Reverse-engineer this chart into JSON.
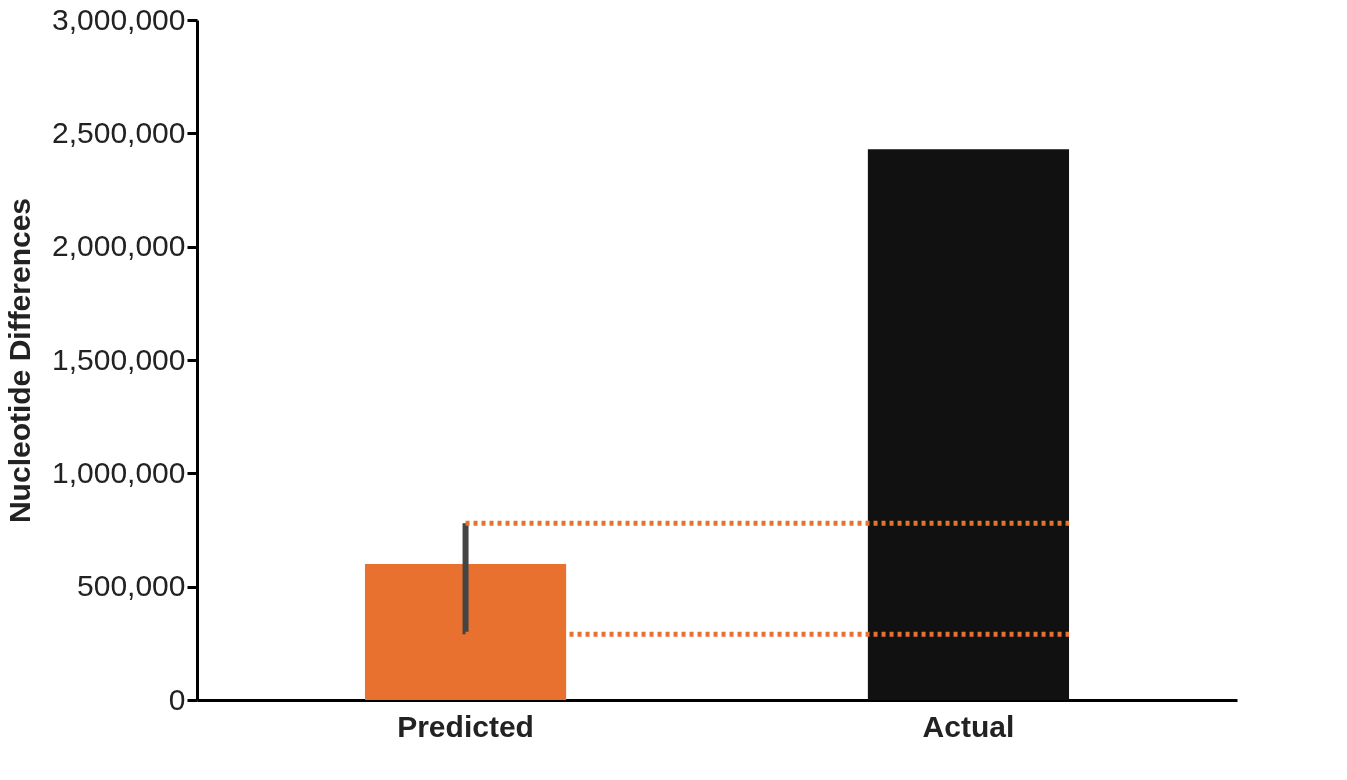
{
  "chart_data": {
    "type": "bar",
    "categories": [
      "Predicted",
      "Actual"
    ],
    "values": [
      600000,
      2430000
    ],
    "colors": [
      "#e8712f",
      "#111111"
    ],
    "errors": [
      [
        290000,
        780000
      ],
      null
    ],
    "ylabel": "Nucleotide Differences",
    "ylim": [
      0,
      3000000
    ],
    "yticks": [
      0,
      {
        "value": 500000,
        "label": "500,000"
      },
      {
        "value": 1000000,
        "label": "1,000,000"
      },
      {
        "value": 1500000,
        "label": "1,500,000"
      },
      {
        "value": 2000000,
        "label": "2,000,000"
      },
      {
        "value": 2500000,
        "label": "2,500,000"
      },
      {
        "value": 3000000,
        "label": "3,000,000"
      }
    ],
    "grid": false,
    "ref_lines": [
      {
        "axis": "y",
        "value": 780000,
        "color": "#e8712f",
        "line_style": "dotted"
      },
      {
        "axis": "y",
        "value": 290000,
        "color": "#e8712f",
        "line_style": "dotted"
      }
    ]
  }
}
